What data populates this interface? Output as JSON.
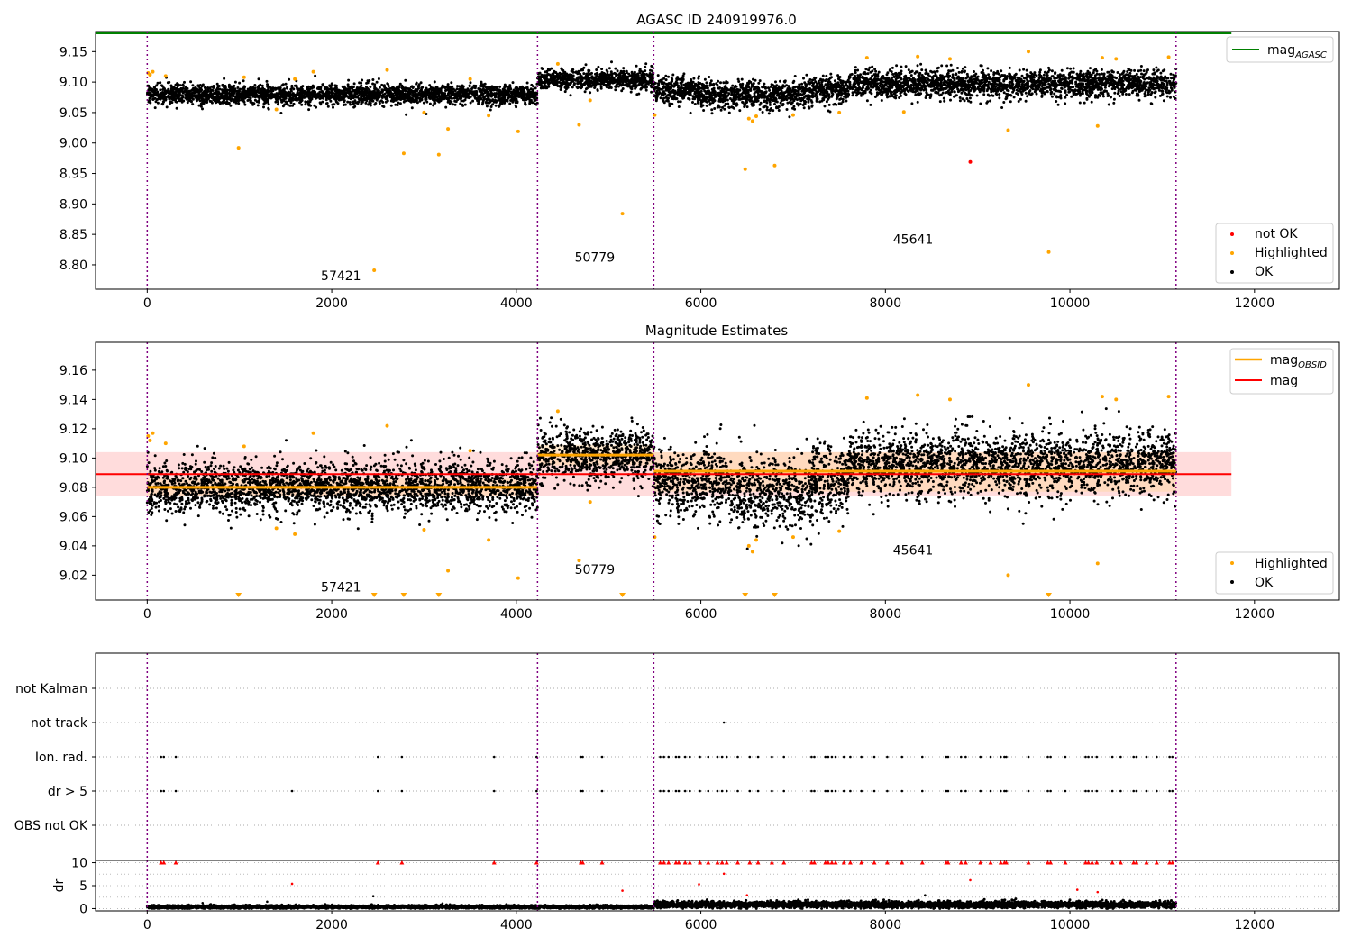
{
  "figure": {
    "title": "AGASC ID 240919976.0",
    "background": "#ffffff"
  },
  "colors": {
    "ok": "#000000",
    "highlighted": "#ffa500",
    "not_ok": "#ff0000",
    "mag_agasc": "#008000",
    "mag": "#ff0000",
    "mag_obsid": "#ffa500",
    "obsid_divider": "#800080",
    "band_mag": "#ffc0c0",
    "band_obsid": "#ffd9a8"
  },
  "obsids": [
    {
      "label": "57421",
      "start": 0,
      "end": 4230
    },
    {
      "label": "50779",
      "start": 4230,
      "end": 5490
    },
    {
      "label": "45641",
      "start": 5490,
      "end": 11150
    }
  ],
  "chart_data": [
    {
      "panel": "top",
      "type": "scatter",
      "title": "AGASC ID 240919976.0",
      "xlim": [
        -560,
        12920
      ],
      "ylim": [
        8.76,
        9.183
      ],
      "xticks": [
        0,
        2000,
        4000,
        6000,
        8000,
        10000,
        12000
      ],
      "yticks": [
        8.8,
        8.85,
        8.9,
        8.95,
        9.0,
        9.05,
        9.1,
        9.15
      ],
      "ytick_labels": [
        "8.80",
        "8.85",
        "8.90",
        "8.95",
        "9.00",
        "9.05",
        "9.10",
        "9.15"
      ],
      "obsid_label_positions": [
        {
          "label": "57421",
          "x": 2100,
          "y": 8.775
        },
        {
          "label": "50779",
          "x": 4850,
          "y": 8.805
        },
        {
          "label": "45641",
          "x": 8300,
          "y": 8.835
        }
      ],
      "series": [
        {
          "name": "mag_AGASC",
          "kind": "hline",
          "y": 9.18,
          "xrange": [
            -560,
            11750
          ]
        }
      ],
      "ok_segments": [
        {
          "start": 0,
          "end": 4230,
          "mean": 9.08,
          "sd": 0.008
        },
        {
          "start": 4230,
          "end": 5490,
          "mean": 9.104,
          "sd": 0.008
        },
        {
          "start": 5490,
          "end": 7600,
          "mean": 9.087,
          "sd": 0.011
        },
        {
          "start": 7600,
          "end": 11150,
          "mean": 9.097,
          "sd": 0.011
        }
      ],
      "highlighted_points": [
        [
          10,
          9.115
        ],
        [
          30,
          9.112
        ],
        [
          60,
          9.117
        ],
        [
          200,
          9.11
        ],
        [
          990,
          8.992
        ],
        [
          1050,
          9.108
        ],
        [
          1400,
          9.055
        ],
        [
          1600,
          9.105
        ],
        [
          1800,
          9.117
        ],
        [
          2460,
          8.791
        ],
        [
          2600,
          9.12
        ],
        [
          2780,
          8.983
        ],
        [
          3000,
          9.05
        ],
        [
          3160,
          8.981
        ],
        [
          3260,
          9.023
        ],
        [
          3500,
          9.105
        ],
        [
          3700,
          9.045
        ],
        [
          4020,
          9.019
        ],
        [
          4450,
          9.13
        ],
        [
          4680,
          9.03
        ],
        [
          4800,
          9.07
        ],
        [
          5150,
          8.884
        ],
        [
          5500,
          9.046
        ],
        [
          6480,
          8.957
        ],
        [
          6520,
          9.04
        ],
        [
          6560,
          9.036
        ],
        [
          6600,
          9.044
        ],
        [
          6800,
          8.963
        ],
        [
          7000,
          9.046
        ],
        [
          7500,
          9.05
        ],
        [
          7800,
          9.14
        ],
        [
          8200,
          9.051
        ],
        [
          8350,
          9.142
        ],
        [
          8700,
          9.138
        ],
        [
          9330,
          9.021
        ],
        [
          9550,
          9.15
        ],
        [
          9770,
          8.821
        ],
        [
          10300,
          9.028
        ],
        [
          10350,
          9.14
        ],
        [
          10500,
          9.138
        ],
        [
          11070,
          9.141
        ]
      ],
      "not_ok_points": [
        [
          8920,
          8.969
        ]
      ],
      "legends": {
        "lines": [
          {
            "label": "mag",
            "sub": "AGASC"
          }
        ],
        "points": [
          {
            "label": "not OK"
          },
          {
            "label": "Highlighted"
          },
          {
            "label": "OK"
          }
        ]
      }
    },
    {
      "panel": "middle",
      "type": "scatter",
      "title": "Magnitude Estimates",
      "xlim": [
        -560,
        12920
      ],
      "ylim": [
        9.003,
        9.179
      ],
      "xticks": [
        0,
        2000,
        4000,
        6000,
        8000,
        10000,
        12000
      ],
      "yticks": [
        9.02,
        9.04,
        9.06,
        9.08,
        9.1,
        9.12,
        9.14,
        9.16
      ],
      "ytick_labels": [
        "9.02",
        "9.04",
        "9.06",
        "9.08",
        "9.10",
        "9.12",
        "9.14",
        "9.16"
      ],
      "obsid_label_positions": [
        {
          "label": "57421",
          "x": 2100,
          "y": 9.009
        },
        {
          "label": "50779",
          "x": 4850,
          "y": 9.021
        },
        {
          "label": "45641",
          "x": 8300,
          "y": 9.034
        }
      ],
      "series": [
        {
          "name": "mag",
          "kind": "hline",
          "y": 9.089,
          "band": [
            9.074,
            9.104
          ],
          "xrange": [
            -560,
            11750
          ]
        },
        {
          "name": "mag_OBSID",
          "kind": "segments",
          "values": [
            {
              "start": 0,
              "end": 4230,
              "y": 9.08,
              "band": [
                9.074,
                9.086
              ]
            },
            {
              "start": 4230,
              "end": 5490,
              "y": 9.102,
              "band": [
                9.095,
                9.109
              ]
            },
            {
              "start": 5490,
              "end": 11150,
              "y": 9.091,
              "band": [
                9.077,
                9.104
              ]
            }
          ]
        }
      ],
      "ok_segments": [
        {
          "start": 0,
          "end": 4230,
          "mean": 9.08,
          "sd": 0.0085
        },
        {
          "start": 4230,
          "end": 5490,
          "mean": 9.102,
          "sd": 0.009
        },
        {
          "start": 5490,
          "end": 7600,
          "mean": 9.084,
          "sd": 0.012
        },
        {
          "start": 7600,
          "end": 11150,
          "mean": 9.096,
          "sd": 0.011
        }
      ],
      "highlighted_points": [
        [
          10,
          9.115
        ],
        [
          30,
          9.112
        ],
        [
          60,
          9.117
        ],
        [
          200,
          9.11
        ],
        [
          1050,
          9.108
        ],
        [
          1400,
          9.052
        ],
        [
          1600,
          9.048
        ],
        [
          1800,
          9.117
        ],
        [
          2600,
          9.122
        ],
        [
          3000,
          9.051
        ],
        [
          3260,
          9.023
        ],
        [
          3500,
          9.105
        ],
        [
          3700,
          9.044
        ],
        [
          4020,
          9.018
        ],
        [
          4450,
          9.132
        ],
        [
          4680,
          9.03
        ],
        [
          4800,
          9.07
        ],
        [
          5500,
          9.046
        ],
        [
          6520,
          9.04
        ],
        [
          6560,
          9.036
        ],
        [
          6600,
          9.044
        ],
        [
          7000,
          9.046
        ],
        [
          7500,
          9.05
        ],
        [
          7800,
          9.141
        ],
        [
          8350,
          9.143
        ],
        [
          8700,
          9.14
        ],
        [
          9330,
          9.02
        ],
        [
          9550,
          9.15
        ],
        [
          10300,
          9.028
        ],
        [
          10350,
          9.142
        ],
        [
          10500,
          9.14
        ],
        [
          11070,
          9.142
        ]
      ],
      "offscale_markers": [
        990,
        2460,
        2780,
        3160,
        5150,
        6480,
        6800,
        9770
      ],
      "legends": {
        "lines": [
          {
            "label": "mag",
            "sub": "OBSID"
          },
          {
            "label": "mag",
            "sub": ""
          }
        ],
        "points": [
          {
            "label": "Highlighted"
          },
          {
            "label": "OK"
          }
        ]
      }
    },
    {
      "panel": "flags",
      "type": "scatter",
      "xlim": [
        -560,
        12920
      ],
      "categories": [
        "not Kalman",
        "not track",
        "Ion. rad.",
        "dr > 5",
        "OBS not OK"
      ],
      "points": {
        "not track": [
          6250
        ],
        "Ion. rad.": [
          150,
          180,
          310,
          2500,
          2760,
          3760,
          4220,
          4700,
          4720,
          4930,
          5560,
          5600,
          5650,
          5730,
          5760,
          5830,
          5880,
          5990,
          6080,
          6180,
          6230,
          6280,
          6400,
          6530,
          6620,
          6770,
          6900,
          7200,
          7230,
          7350,
          7380,
          7420,
          7460,
          7550,
          7620,
          7740,
          7880,
          8020,
          8180,
          8400,
          8660,
          8680,
          8820,
          8870,
          9030,
          9140,
          9250,
          9290,
          9310,
          9550,
          9760,
          9790,
          9950,
          10170,
          10200,
          10240,
          10290,
          10460,
          10550,
          10690,
          10720,
          10830,
          10940,
          11080,
          11110
        ],
        "dr > 5": [
          150,
          180,
          310,
          1570,
          2500,
          2760,
          3760,
          4220,
          4700,
          4720,
          4930,
          5560,
          5600,
          5650,
          5730,
          5760,
          5830,
          5880,
          5990,
          6080,
          6180,
          6230,
          6280,
          6400,
          6530,
          6620,
          6770,
          6900,
          7200,
          7230,
          7350,
          7380,
          7420,
          7460,
          7550,
          7620,
          7740,
          7880,
          8020,
          8180,
          8400,
          8660,
          8680,
          8820,
          8870,
          9030,
          9140,
          9250,
          9290,
          9310,
          9550,
          9760,
          9790,
          9950,
          10170,
          10200,
          10240,
          10290,
          10460,
          10550,
          10690,
          10720,
          10830,
          10940,
          11080,
          11110
        ]
      }
    },
    {
      "panel": "dr",
      "type": "scatter",
      "ylabel": "dr",
      "xlim": [
        -560,
        12920
      ],
      "ylim": [
        -0.5,
        10.5
      ],
      "xticks": [
        0,
        2000,
        4000,
        6000,
        8000,
        10000,
        12000
      ],
      "yticks": [
        0,
        5,
        10
      ],
      "dr_capped_x": [
        150,
        180,
        310,
        2500,
        2760,
        3760,
        4220,
        4700,
        4720,
        4930,
        5560,
        5600,
        5650,
        5730,
        5760,
        5830,
        5880,
        5990,
        6080,
        6180,
        6230,
        6280,
        6400,
        6530,
        6620,
        6770,
        6900,
        7200,
        7230,
        7350,
        7380,
        7420,
        7460,
        7550,
        7620,
        7740,
        7880,
        8020,
        8180,
        8400,
        8660,
        8680,
        8820,
        8870,
        9030,
        9140,
        9250,
        9290,
        9310,
        9550,
        9760,
        9790,
        9950,
        10170,
        10200,
        10240,
        10290,
        10460,
        10550,
        10690,
        10720,
        10830,
        10940,
        11080,
        11110
      ],
      "dr_red_points": [
        [
          1570,
          5.4
        ],
        [
          5150,
          3.9
        ],
        [
          5980,
          5.3
        ],
        [
          6250,
          7.6
        ],
        [
          6500,
          2.9
        ],
        [
          8920,
          6.2
        ],
        [
          10080,
          4.1
        ],
        [
          10300,
          3.6
        ]
      ],
      "dr_black_outliers": [
        [
          600,
          1.2
        ],
        [
          1300,
          1.5
        ],
        [
          2450,
          2.7
        ],
        [
          3200,
          1.1
        ],
        [
          7450,
          1.3
        ],
        [
          8430,
          2.9
        ],
        [
          10600,
          1.4
        ]
      ],
      "dr_segments": [
        {
          "start": 0,
          "end": 5490,
          "mean": 0.35,
          "sd": 0.18
        },
        {
          "start": 5490,
          "end": 11150,
          "mean": 0.85,
          "sd": 0.35
        }
      ]
    }
  ]
}
